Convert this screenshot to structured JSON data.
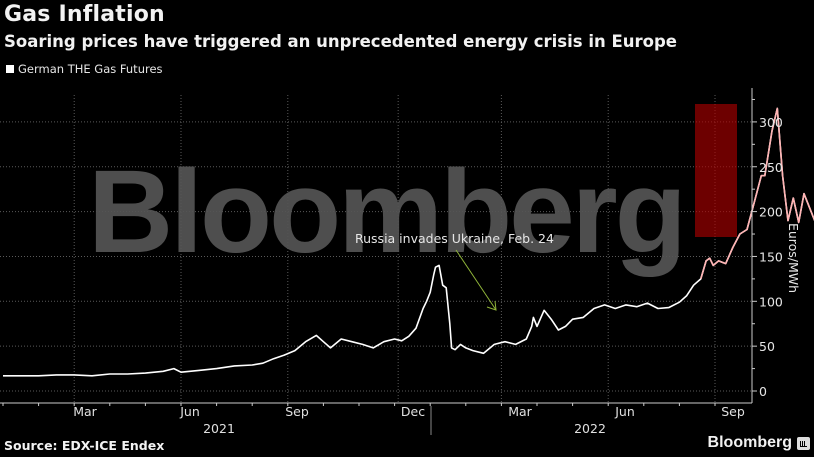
{
  "header": {
    "title": "Gas Inflation",
    "subtitle": "Soaring prices have triggered an unprecedented energy crisis in Europe"
  },
  "legend": {
    "label": "German THE Gas Futures",
    "color": "#ffffff"
  },
  "footer": {
    "source": "Source: EDX-ICE Endex",
    "brand": "Bloomberg"
  },
  "watermark": "Bloomberg",
  "annotation": {
    "text": "Russia invades Ukraine, Feb. 24",
    "arrow_color": "#8fb339"
  },
  "highlight": {
    "color": "#b00000",
    "x_start_month": 19.6,
    "x_end_month": 20.8,
    "y_min": 170,
    "y_max": 320
  },
  "colors": {
    "background": "#000000",
    "line": "#ffffff",
    "grid": "#555555",
    "watermark": "#555555"
  },
  "chart_data": {
    "type": "line",
    "title": "Gas Inflation",
    "subtitle": "Soaring prices have triggered an unprecedented energy crisis in Europe",
    "xlabel": "",
    "ylabel": "Euros/MWh",
    "ylim": [
      0,
      330
    ],
    "yticks": [
      0,
      50,
      100,
      150,
      200,
      250,
      300
    ],
    "y_axis_position": "right",
    "grid": true,
    "legend_position": "top-left",
    "x_month_ticks": [
      "Mar",
      "Jun",
      "Sep",
      "Dec",
      "Mar",
      "Jun",
      "Sep"
    ],
    "x_year_labels": [
      "2021",
      "2022"
    ],
    "x_unit": "months since Jan 1 2021",
    "series": [
      {
        "name": "German THE Gas Futures",
        "points": [
          [
            0.0,
            17
          ],
          [
            0.5,
            17
          ],
          [
            1.0,
            17
          ],
          [
            1.5,
            18
          ],
          [
            2.0,
            18
          ],
          [
            2.5,
            17
          ],
          [
            3.0,
            19
          ],
          [
            3.5,
            19
          ],
          [
            4.0,
            20
          ],
          [
            4.5,
            22
          ],
          [
            4.8,
            25
          ],
          [
            5.0,
            21
          ],
          [
            5.5,
            23
          ],
          [
            6.0,
            25
          ],
          [
            6.5,
            28
          ],
          [
            7.0,
            29
          ],
          [
            7.3,
            31
          ],
          [
            7.6,
            36
          ],
          [
            7.9,
            40
          ],
          [
            8.2,
            45
          ],
          [
            8.5,
            55
          ],
          [
            8.8,
            62
          ],
          [
            9.0,
            55
          ],
          [
            9.2,
            48
          ],
          [
            9.5,
            58
          ],
          [
            9.8,
            55
          ],
          [
            10.1,
            52
          ],
          [
            10.4,
            48
          ],
          [
            10.7,
            55
          ],
          [
            11.0,
            58
          ],
          [
            11.2,
            56
          ],
          [
            11.4,
            61
          ],
          [
            11.6,
            70
          ],
          [
            11.8,
            92
          ],
          [
            11.9,
            100
          ],
          [
            12.0,
            110
          ],
          [
            12.1,
            130
          ],
          [
            12.15,
            138
          ],
          [
            12.25,
            140
          ],
          [
            12.35,
            118
          ],
          [
            12.45,
            115
          ],
          [
            12.55,
            75
          ],
          [
            12.6,
            48
          ],
          [
            12.7,
            46
          ],
          [
            12.85,
            52
          ],
          [
            13.0,
            48
          ],
          [
            13.2,
            45
          ],
          [
            13.5,
            42
          ],
          [
            13.8,
            52
          ],
          [
            14.1,
            55
          ],
          [
            14.4,
            52
          ],
          [
            14.7,
            58
          ],
          [
            14.85,
            72
          ],
          [
            14.9,
            82
          ],
          [
            15.0,
            72
          ],
          [
            15.2,
            90
          ],
          [
            15.4,
            80
          ],
          [
            15.6,
            68
          ],
          [
            15.8,
            72
          ],
          [
            16.0,
            80
          ],
          [
            16.3,
            82
          ],
          [
            16.6,
            92
          ],
          [
            16.9,
            96
          ],
          [
            17.2,
            92
          ],
          [
            17.5,
            96
          ],
          [
            17.8,
            94
          ],
          [
            18.1,
            98
          ],
          [
            18.4,
            92
          ],
          [
            18.7,
            93
          ],
          [
            19.0,
            99
          ],
          [
            19.2,
            106
          ],
          [
            19.4,
            118
          ],
          [
            19.6,
            125
          ],
          [
            19.75,
            145
          ],
          [
            19.85,
            148
          ],
          [
            19.95,
            140
          ],
          [
            20.1,
            145
          ],
          [
            20.3,
            142
          ],
          [
            20.5,
            160
          ],
          [
            20.7,
            175
          ],
          [
            20.9,
            180
          ],
          [
            21.1,
            210
          ],
          [
            21.3,
            240
          ],
          [
            21.4,
            240
          ],
          [
            21.6,
            290
          ],
          [
            21.75,
            315
          ],
          [
            21.9,
            240
          ],
          [
            22.05,
            190
          ],
          [
            22.2,
            215
          ],
          [
            22.35,
            188
          ],
          [
            22.5,
            220
          ],
          [
            22.7,
            200
          ],
          [
            22.85,
            185
          ],
          [
            23.0,
            210
          ]
        ]
      }
    ]
  }
}
